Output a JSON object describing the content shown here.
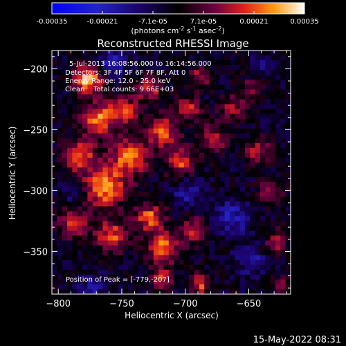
{
  "chart_data": {
    "type": "heatmap",
    "title": "Reconstructed RHESSI Image",
    "xlabel": "Heliocentric X (arcsec)",
    "ylabel": "Heliocentric Y (arcsec)",
    "xlim": [
      -805,
      -617
    ],
    "ylim": [
      -385,
      -185
    ],
    "xticks": [
      -800,
      -750,
      -700,
      -650
    ],
    "yticks": [
      -200,
      -250,
      -300,
      -350
    ],
    "colorbar": {
      "ticks": [
        "-0.00035",
        "-0.00021",
        "-7.1e-05",
        "7.1e-05",
        "0.00021",
        "0.00035"
      ],
      "label_main": "(photons cm",
      "label_exp1": "-2",
      "label_mid": " s",
      "label_exp2": "-1",
      "label_tail": " asec",
      "label_exp3": "-2",
      "label_close": ")",
      "range": [
        -0.00035,
        0.00035
      ]
    },
    "annotations": [
      "5-Jul-2013 16:08:56.000 to 16:14:56.000",
      "Detectors: 3F 4F 5F 6F 7F 8F, Att 0",
      "Energy Range: 12.0 - 25.0 keV",
      "Clean    Total counts: 9.66E+03"
    ],
    "peak_label": "Position of Peak = [-779,-207]",
    "peak": [
      -779,
      -207
    ],
    "colormap": "blue-black-purple-red-orange-yellow-white",
    "hotspots": [
      {
        "x": -779,
        "y": -207,
        "r": 8,
        "v": 0.00033
      },
      {
        "x": -770,
        "y": -240,
        "r": 10,
        "v": 0.00026
      },
      {
        "x": -785,
        "y": -270,
        "r": 9,
        "v": 0.00024
      },
      {
        "x": -765,
        "y": -295,
        "r": 12,
        "v": 0.0003
      },
      {
        "x": -745,
        "y": -270,
        "r": 10,
        "v": 0.00028
      },
      {
        "x": -750,
        "y": -232,
        "r": 8,
        "v": 0.00022
      },
      {
        "x": -730,
        "y": -215,
        "r": 7,
        "v": 0.0002
      },
      {
        "x": -720,
        "y": -250,
        "r": 9,
        "v": 0.00024
      },
      {
        "x": -705,
        "y": -275,
        "r": 8,
        "v": 0.00022
      },
      {
        "x": -700,
        "y": -230,
        "r": 7,
        "v": 0.0002
      },
      {
        "x": -690,
        "y": -205,
        "r": 6,
        "v": 0.00018
      },
      {
        "x": -680,
        "y": -255,
        "r": 8,
        "v": 0.00019
      },
      {
        "x": -665,
        "y": -230,
        "r": 7,
        "v": 0.00016
      },
      {
        "x": -650,
        "y": -215,
        "r": 6,
        "v": 0.00014
      },
      {
        "x": -645,
        "y": -265,
        "r": 7,
        "v": 0.00018
      },
      {
        "x": -635,
        "y": -300,
        "r": 7,
        "v": 0.00015
      },
      {
        "x": -790,
        "y": -325,
        "r": 8,
        "v": 0.00022
      },
      {
        "x": -760,
        "y": -335,
        "r": 9,
        "v": 0.00023
      },
      {
        "x": -730,
        "y": -320,
        "r": 8,
        "v": 0.00025
      },
      {
        "x": -720,
        "y": -345,
        "r": 9,
        "v": 0.00027
      },
      {
        "x": -695,
        "y": -330,
        "r": 7,
        "v": 0.0002
      },
      {
        "x": -720,
        "y": -370,
        "r": 6,
        "v": 0.00019
      },
      {
        "x": -690,
        "y": -375,
        "r": 6,
        "v": 0.00022
      },
      {
        "x": -630,
        "y": -340,
        "r": 7,
        "v": 0.00016
      },
      {
        "x": -625,
        "y": -375,
        "r": 5,
        "v": 0.00012
      }
    ],
    "coldspots": [
      {
        "x": -760,
        "y": -193,
        "r": 8,
        "v": -0.00015
      },
      {
        "x": -790,
        "y": -300,
        "r": 6,
        "v": -0.0001
      },
      {
        "x": -700,
        "y": -300,
        "r": 8,
        "v": -0.00014
      },
      {
        "x": -665,
        "y": -320,
        "r": 10,
        "v": -0.00016
      },
      {
        "x": -650,
        "y": -355,
        "r": 8,
        "v": -0.00015
      },
      {
        "x": -775,
        "y": -378,
        "r": 7,
        "v": -0.00012
      },
      {
        "x": -640,
        "y": -195,
        "r": 6,
        "v": -0.0001
      }
    ]
  },
  "timestamp": "15-May-2022 08:31"
}
